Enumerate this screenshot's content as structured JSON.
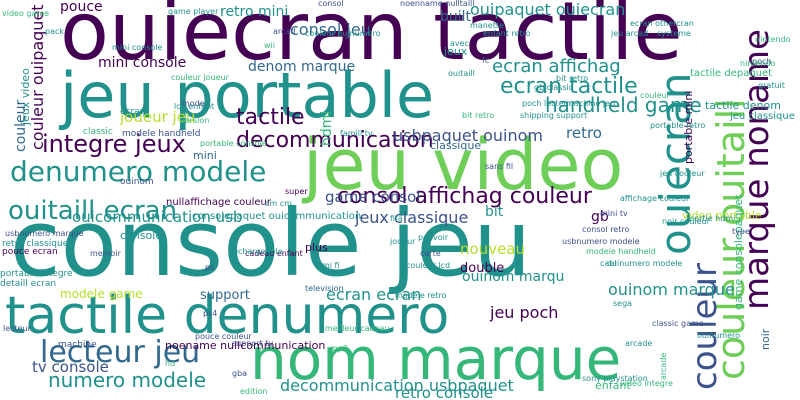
{
  "palette": {
    "dark_purple": "#440154",
    "indigo": "#3b528b",
    "blue": "#31688e",
    "teal": "#21918c",
    "green": "#35b779",
    "lime": "#6ece58",
    "yellow_green": "#b5de2b"
  },
  "words": [
    {
      "text": "console jeu",
      "color": "teal"
    },
    {
      "text": "ouiecran tactile",
      "color": "dark_purple"
    },
    {
      "text": "jeu portable",
      "color": "teal"
    },
    {
      "text": "jeu video",
      "color": "lime"
    },
    {
      "text": "nom marque",
      "color": "green"
    },
    {
      "text": "tactile denumero",
      "color": "teal"
    },
    {
      "text": "couleur ouitaill",
      "color": "lime"
    },
    {
      "text": "ouiecran",
      "color": "teal"
    },
    {
      "text": "couleur",
      "color": "indigo"
    },
    {
      "text": "marque noname",
      "color": "dark_purple"
    },
    {
      "text": "denumero modele",
      "color": "teal"
    },
    {
      "text": "ouitaill ecran",
      "color": "teal"
    },
    {
      "text": "lecteur jeu",
      "color": "blue"
    },
    {
      "text": "integre jeux",
      "color": "dark_purple"
    },
    {
      "text": "decommunication",
      "color": "dark_purple"
    },
    {
      "text": "tactile",
      "color": "dark_purple"
    },
    {
      "text": "consol affichag couleur",
      "color": "dark_purple"
    },
    {
      "text": "ecran tactile",
      "color": "teal"
    },
    {
      "text": "handheld game",
      "color": "teal"
    },
    {
      "text": "ecran affichag",
      "color": "teal"
    },
    {
      "text": "numero modele",
      "color": "teal"
    },
    {
      "text": "tv console",
      "color": "indigo"
    },
    {
      "text": "game consol",
      "color": "indigo"
    },
    {
      "text": "jeux classique",
      "color": "indigo"
    },
    {
      "text": "couleur ouipaquet",
      "color": "dark_purple"
    },
    {
      "text": "usbpaquet ouinom",
      "color": "indigo"
    },
    {
      "text": "ouicommunication usb",
      "color": "teal"
    },
    {
      "text": "decommunication usbpaquet",
      "color": "teal"
    },
    {
      "text": "ouipaquet ouiecran",
      "color": "teal"
    },
    {
      "text": "consol jeu",
      "color": "blue"
    },
    {
      "text": "retro mini",
      "color": "teal"
    },
    {
      "text": "pouce",
      "color": "dark_purple"
    },
    {
      "text": "mini console",
      "color": "dark_purple"
    },
    {
      "text": "denom marque",
      "color": "blue"
    },
    {
      "text": "joueur jeu",
      "color": "yellow_green"
    },
    {
      "text": "ecran ecran",
      "color": "teal"
    },
    {
      "text": "jeu poch",
      "color": "dark_purple"
    },
    {
      "text": "ouinom marque",
      "color": "teal"
    },
    {
      "text": "retro console",
      "color": "teal"
    },
    {
      "text": "support",
      "color": "blue"
    },
    {
      "text": "nouveau",
      "color": "yellow_green"
    },
    {
      "text": "modele game",
      "color": "yellow_green"
    },
    {
      "text": "retro",
      "color": "blue"
    },
    {
      "text": "bit",
      "color": "teal"
    },
    {
      "text": "gb",
      "color": "dark_purple"
    },
    {
      "text": "ouinom marqu",
      "color": "teal"
    },
    {
      "text": "double",
      "color": "dark_purple"
    },
    {
      "text": "built",
      "color": "blue"
    },
    {
      "text": "jeux",
      "color": "teal"
    },
    {
      "text": "jeux video",
      "color": "teal"
    },
    {
      "text": "couleur",
      "color": "blue"
    },
    {
      "text": "mini",
      "color": "blue"
    },
    {
      "text": "plus",
      "color": "dark_purple"
    },
    {
      "text": "hdmi",
      "color": "green"
    },
    {
      "text": "video portable",
      "color": "yellow_green"
    },
    {
      "text": "noir",
      "color": "blue"
    },
    {
      "text": "game consolepaquet",
      "color": "green"
    },
    {
      "text": "portable mini",
      "color": "dark_purple"
    },
    {
      "text": "tactile denom",
      "color": "teal"
    },
    {
      "text": "classique",
      "color": "blue"
    },
    {
      "text": "console",
      "color": "teal"
    },
    {
      "text": "enfant",
      "color": "green"
    },
    {
      "text": "noename nullcommunication",
      "color": "dark_purple"
    },
    {
      "text": "nullaffichage couleur",
      "color": "dark_purple"
    },
    {
      "text": "consolepaquet ouicommunication",
      "color": "teal"
    },
    {
      "text": "pouce ecran",
      "color": "dark_purple"
    },
    {
      "text": "detaill ecran",
      "color": "teal"
    },
    {
      "text": "portable integre",
      "color": "teal"
    },
    {
      "text": "retro classique",
      "color": "teal"
    },
    {
      "text": "machine",
      "color": "indigo"
    },
    {
      "text": "classic",
      "color": "green"
    },
    {
      "text": "modele handheld",
      "color": "indigo"
    },
    {
      "text": "ouinom",
      "color": "indigo"
    },
    {
      "text": "ecran",
      "color": "teal"
    },
    {
      "text": "game player",
      "color": "teal"
    },
    {
      "text": "nintendo",
      "color": "green"
    },
    {
      "text": "tactile depaquet",
      "color": "green"
    },
    {
      "text": "jeu classique",
      "color": "teal"
    },
    {
      "text": "poch",
      "color": "indigo"
    },
    {
      "text": "usbnumero modele",
      "color": "indigo"
    },
    {
      "text": "mini tv",
      "color": "indigo"
    },
    {
      "text": "systeme",
      "color": "teal"
    },
    {
      "text": "jeu arcad",
      "color": "teal"
    },
    {
      "text": "bit retro",
      "color": "green"
    },
    {
      "text": "sans fil",
      "color": "indigo"
    },
    {
      "text": "portable retro",
      "color": "teal"
    },
    {
      "text": "portable console",
      "color": "green"
    },
    {
      "text": "couleur joueur",
      "color": "green"
    },
    {
      "text": "sega",
      "color": "teal"
    },
    {
      "text": "arcade",
      "color": "teal"
    },
    {
      "text": "ps4",
      "color": "indigo"
    },
    {
      "text": "sony playstation",
      "color": "teal"
    },
    {
      "text": "edition",
      "color": "green"
    },
    {
      "text": "gba",
      "color": "indigo"
    },
    {
      "text": "enfant retro",
      "color": "teal"
    },
    {
      "text": "lcd enfant",
      "color": "teal"
    },
    {
      "text": "ouitaill",
      "color": "teal"
    },
    {
      "text": "meilleur cadeau",
      "color": "green"
    },
    {
      "text": "lecteur",
      "color": "indigo"
    },
    {
      "text": "pouce couleur",
      "color": "indigo"
    },
    {
      "text": "mp3",
      "color": "green"
    },
    {
      "text": "hd",
      "color": "green"
    },
    {
      "text": "television",
      "color": "blue"
    },
    {
      "text": "support tv",
      "color": "indigo"
    },
    {
      "text": "cadeau enfant",
      "color": "dark_purple"
    },
    {
      "text": "carte",
      "color": "indigo"
    },
    {
      "text": "mi fi",
      "color": "teal"
    },
    {
      "text": "ouinumero",
      "color": "teal"
    },
    {
      "text": "ps",
      "color": "indigo"
    },
    {
      "text": "memoir",
      "color": "indigo"
    },
    {
      "text": "fifa",
      "color": "teal"
    },
    {
      "text": "pouvoir",
      "color": "teal"
    },
    {
      "text": "joueur",
      "color": "teal"
    },
    {
      "text": "pack",
      "color": "teal"
    },
    {
      "text": "consol",
      "color": "indigo"
    },
    {
      "text": "arcad",
      "color": "indigo"
    },
    {
      "text": "wii",
      "color": "green"
    },
    {
      "text": "ouinumero modele",
      "color": "teal"
    },
    {
      "text": "manette",
      "color": "teal"
    },
    {
      "text": "noenname nulltaill",
      "color": "indigo"
    },
    {
      "text": "bit retro",
      "color": "teal"
    },
    {
      "text": "poch lecteur",
      "color": "teal"
    },
    {
      "text": "machine jeu",
      "color": "teal"
    },
    {
      "text": "video game",
      "color": "green"
    },
    {
      "text": "mini console",
      "color": "teal"
    },
    {
      "text": "mode",
      "color": "indigo"
    },
    {
      "text": "jeu couleur",
      "color": "teal"
    },
    {
      "text": "couleur ouinumero",
      "color": "teal"
    },
    {
      "text": "version",
      "color": "green"
    },
    {
      "text": "shipping support",
      "color": "teal"
    },
    {
      "text": "gb classic",
      "color": "teal"
    },
    {
      "text": "avec",
      "color": "teal"
    },
    {
      "text": "super",
      "color": "dark_purple"
    },
    {
      "text": "cm cm",
      "color": "teal"
    },
    {
      "text": "rechargeable",
      "color": "teal"
    },
    {
      "text": "sortie hdmi",
      "color": "teal"
    },
    {
      "text": "modele retro",
      "color": "teal"
    },
    {
      "text": "consol retro",
      "color": "indigo"
    },
    {
      "text": "ecran othercran",
      "color": "teal"
    },
    {
      "text": "arcade",
      "color": "green"
    },
    {
      "text": "video integre",
      "color": "green"
    },
    {
      "text": "couleur lcd",
      "color": "teal"
    },
    {
      "text": "affichage couleur",
      "color": "teal"
    },
    {
      "text": "usbnumero marque",
      "color": "indigo"
    },
    {
      "text": "famill tv",
      "color": "teal"
    },
    {
      "text": "type",
      "color": "indigo"
    },
    {
      "text": "noir couleur",
      "color": "teal"
    },
    {
      "text": "nintendo",
      "color": "green"
    },
    {
      "text": "modele handheld",
      "color": "green"
    },
    {
      "text": "cabl",
      "color": "teal"
    },
    {
      "text": "classic game",
      "color": "indigo"
    },
    {
      "text": "couleur",
      "color": "green"
    },
    {
      "text": "fc",
      "color": "indigo"
    },
    {
      "text": "gratuit",
      "color": "teal"
    },
    {
      "text": "retro fc",
      "color": "indigo"
    }
  ]
}
